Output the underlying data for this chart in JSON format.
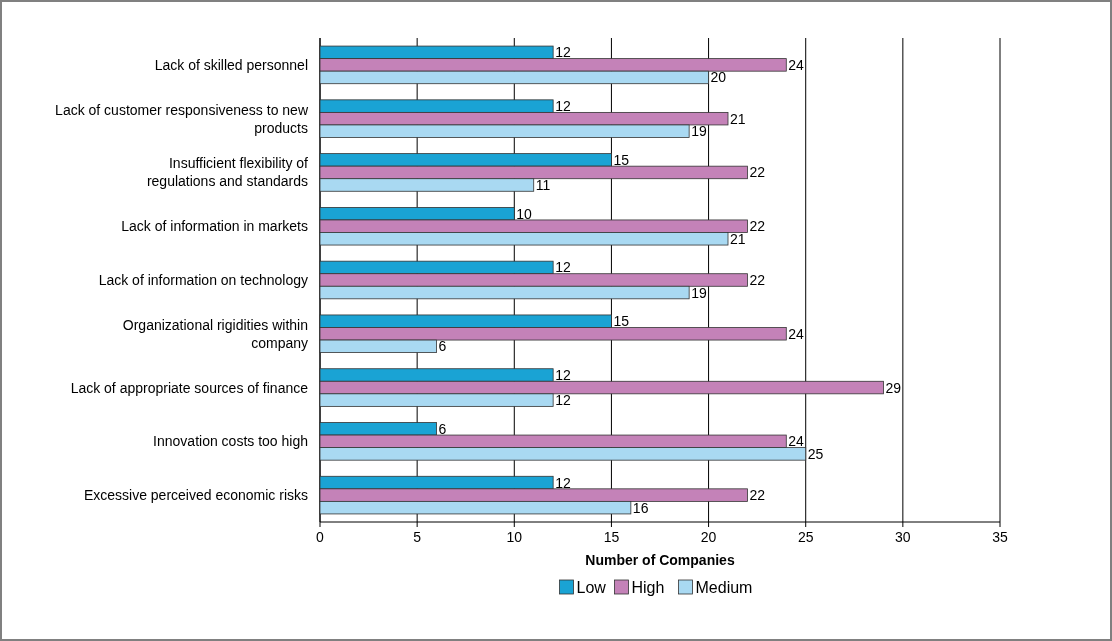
{
  "chart_data": {
    "type": "bar",
    "orientation": "horizontal",
    "xlabel": "Number of Companies",
    "categories": [
      "Lack of skilled personnel",
      "Lack of customer responsiveness to new products",
      "Insufficient flexibility of regulations and standards",
      "Lack of information in markets",
      "Lack of information on technology",
      "Organizational rigidities within company",
      "Lack of appropriate sources of finance",
      "Innovation costs too high",
      "Excessive perceived economic risks"
    ],
    "series": [
      {
        "name": "Low",
        "color": "#1aa3d4",
        "values": [
          12,
          12,
          15,
          10,
          12,
          15,
          12,
          6,
          12
        ]
      },
      {
        "name": "High",
        "color": "#c482b8",
        "values": [
          24,
          21,
          22,
          22,
          22,
          24,
          29,
          24,
          22
        ]
      },
      {
        "name": "Medium",
        "color": "#a9d9f2",
        "values": [
          20,
          19,
          11,
          21,
          19,
          6,
          12,
          25,
          16
        ]
      }
    ],
    "xlim": [
      0,
      35
    ],
    "xticks": [
      0,
      5,
      10,
      15,
      20,
      25,
      30,
      35
    ],
    "grid": "x",
    "legend": "bottom",
    "data_labels": true
  }
}
